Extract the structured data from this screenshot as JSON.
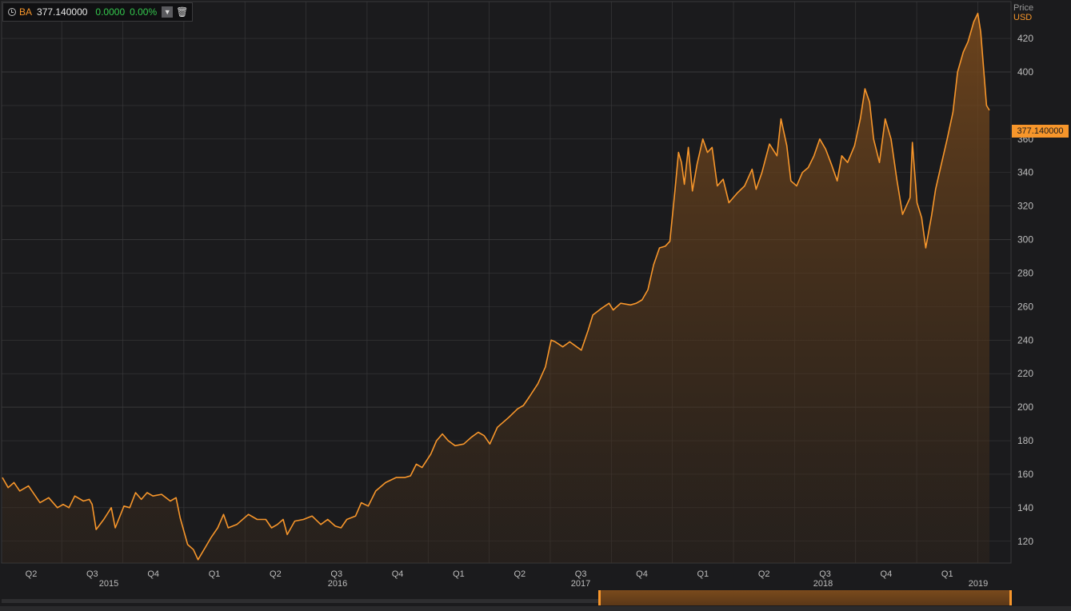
{
  "legend": {
    "ticker": "BA",
    "last": "377.140000",
    "change": "0.0000",
    "change_pct": "0.00%",
    "dropdown_icon": "chevron-down-icon",
    "delete_icon": "trash-icon"
  },
  "axis": {
    "title": "Price",
    "unit": "USD",
    "last_price_label": "377.140000",
    "y_ticks": [
      120,
      140,
      160,
      180,
      200,
      220,
      240,
      260,
      280,
      300,
      320,
      340,
      360,
      400,
      420
    ]
  },
  "colors": {
    "line": "#f7962b",
    "background": "#1b1b1d",
    "grid": "#38383a",
    "positive": "#34c94e"
  },
  "chart_data": {
    "type": "area",
    "ylim": [
      107,
      442
    ],
    "y_ticks": [
      120,
      140,
      160,
      180,
      200,
      220,
      240,
      260,
      280,
      300,
      320,
      340,
      360,
      400,
      420
    ],
    "grid": true,
    "quarter_labels": [
      "Q2",
      "Q3",
      "Q4",
      "Q1",
      "Q2",
      "Q3",
      "Q4",
      "Q1",
      "Q2",
      "Q3",
      "Q4",
      "Q1",
      "Q2",
      "Q3",
      "Q4",
      "Q1"
    ],
    "year_labels": [
      {
        "label": "2015",
        "quarter_index": 1
      },
      {
        "label": "2016",
        "quarter_index": 5
      },
      {
        "label": "2017",
        "quarter_index": 9
      },
      {
        "label": "2018",
        "quarter_index": 13
      },
      {
        "label": "2019",
        "quarter_index": 16
      }
    ],
    "series": [
      {
        "values": [
          [
            0,
            158
          ],
          [
            0.1,
            152
          ],
          [
            0.2,
            155
          ],
          [
            0.3,
            150
          ],
          [
            0.45,
            153
          ],
          [
            0.55,
            148
          ],
          [
            0.65,
            143
          ],
          [
            0.8,
            146
          ],
          [
            0.95,
            140
          ],
          [
            1.05,
            142
          ],
          [
            1.15,
            140
          ],
          [
            1.25,
            147
          ],
          [
            1.4,
            144
          ],
          [
            1.5,
            145
          ],
          [
            1.55,
            142
          ],
          [
            1.62,
            127
          ],
          [
            1.75,
            133
          ],
          [
            1.88,
            140
          ],
          [
            1.95,
            128
          ],
          [
            2.1,
            141
          ],
          [
            2.2,
            140
          ],
          [
            2.3,
            149
          ],
          [
            2.4,
            145
          ],
          [
            2.5,
            149
          ],
          [
            2.6,
            147
          ],
          [
            2.75,
            148
          ],
          [
            2.9,
            144
          ],
          [
            3.0,
            146
          ],
          [
            3.07,
            134
          ],
          [
            3.2,
            118
          ],
          [
            3.3,
            115
          ],
          [
            3.38,
            109
          ],
          [
            3.5,
            116
          ],
          [
            3.6,
            122
          ],
          [
            3.72,
            128
          ],
          [
            3.82,
            136
          ],
          [
            3.9,
            128
          ],
          [
            4.05,
            130
          ],
          [
            4.25,
            136
          ],
          [
            4.4,
            133
          ],
          [
            4.55,
            133
          ],
          [
            4.65,
            128
          ],
          [
            4.75,
            130
          ],
          [
            4.85,
            133
          ],
          [
            4.92,
            124
          ],
          [
            5.05,
            132
          ],
          [
            5.2,
            133
          ],
          [
            5.35,
            135
          ],
          [
            5.5,
            130
          ],
          [
            5.62,
            133
          ],
          [
            5.75,
            129
          ],
          [
            5.85,
            128
          ],
          [
            5.95,
            133
          ],
          [
            6.1,
            135
          ],
          [
            6.2,
            143
          ],
          [
            6.32,
            141
          ],
          [
            6.45,
            150
          ],
          [
            6.62,
            155
          ],
          [
            6.8,
            158
          ],
          [
            6.95,
            158
          ],
          [
            7.05,
            159
          ],
          [
            7.15,
            166
          ],
          [
            7.25,
            164
          ],
          [
            7.4,
            172
          ],
          [
            7.5,
            180
          ],
          [
            7.6,
            184
          ],
          [
            7.7,
            180
          ],
          [
            7.82,
            177
          ],
          [
            7.97,
            178
          ],
          [
            8.1,
            182
          ],
          [
            8.22,
            185
          ],
          [
            8.32,
            183
          ],
          [
            8.42,
            178
          ],
          [
            8.55,
            188
          ],
          [
            8.75,
            194
          ],
          [
            8.9,
            199
          ],
          [
            9.0,
            201
          ],
          [
            9.1,
            206
          ],
          [
            9.25,
            214
          ],
          [
            9.38,
            224
          ],
          [
            9.48,
            240
          ],
          [
            9.55,
            239
          ],
          [
            9.68,
            236
          ],
          [
            9.8,
            239
          ],
          [
            9.92,
            236
          ],
          [
            10.0,
            234
          ],
          [
            10.12,
            246
          ],
          [
            10.2,
            255
          ],
          [
            10.35,
            259
          ],
          [
            10.48,
            262
          ],
          [
            10.55,
            258
          ],
          [
            10.68,
            262
          ],
          [
            10.85,
            261
          ],
          [
            10.95,
            262
          ],
          [
            11.05,
            264
          ],
          [
            11.15,
            270
          ],
          [
            11.25,
            285
          ],
          [
            11.35,
            295
          ],
          [
            11.45,
            296
          ],
          [
            11.53,
            299
          ],
          [
            11.62,
            330
          ],
          [
            11.68,
            352
          ],
          [
            11.73,
            346
          ],
          [
            11.78,
            333
          ],
          [
            11.85,
            355
          ],
          [
            11.92,
            329
          ],
          [
            12.0,
            345
          ],
          [
            12.1,
            360
          ],
          [
            12.18,
            352
          ],
          [
            12.26,
            355
          ],
          [
            12.35,
            332
          ],
          [
            12.45,
            336
          ],
          [
            12.55,
            322
          ],
          [
            12.7,
            328
          ],
          [
            12.82,
            332
          ],
          [
            12.95,
            342
          ],
          [
            13.02,
            330
          ],
          [
            13.12,
            340
          ],
          [
            13.25,
            357
          ],
          [
            13.38,
            350
          ],
          [
            13.45,
            372
          ],
          [
            13.55,
            356
          ],
          [
            13.62,
            335
          ],
          [
            13.72,
            332
          ],
          [
            13.82,
            340
          ],
          [
            13.92,
            343
          ],
          [
            14.02,
            350
          ],
          [
            14.12,
            360
          ],
          [
            14.22,
            354
          ],
          [
            14.32,
            345
          ],
          [
            14.42,
            335
          ],
          [
            14.5,
            350
          ],
          [
            14.6,
            346
          ],
          [
            14.72,
            356
          ],
          [
            14.82,
            372
          ],
          [
            14.9,
            390
          ],
          [
            14.98,
            382
          ],
          [
            15.05,
            360
          ],
          [
            15.15,
            346
          ],
          [
            15.25,
            372
          ],
          [
            15.35,
            360
          ],
          [
            15.45,
            336
          ],
          [
            15.55,
            315
          ],
          [
            15.68,
            325
          ],
          [
            15.72,
            358
          ],
          [
            15.8,
            322
          ],
          [
            15.88,
            313
          ],
          [
            15.95,
            295
          ],
          [
            16.05,
            314
          ],
          [
            16.12,
            330
          ],
          [
            16.22,
            345
          ],
          [
            16.32,
            360
          ],
          [
            16.42,
            376
          ],
          [
            16.5,
            400
          ],
          [
            16.6,
            412
          ],
          [
            16.68,
            418
          ],
          [
            16.78,
            430
          ],
          [
            16.85,
            435
          ],
          [
            16.9,
            424
          ],
          [
            17.0,
            380
          ],
          [
            17.05,
            377.14
          ]
        ]
      }
    ]
  }
}
